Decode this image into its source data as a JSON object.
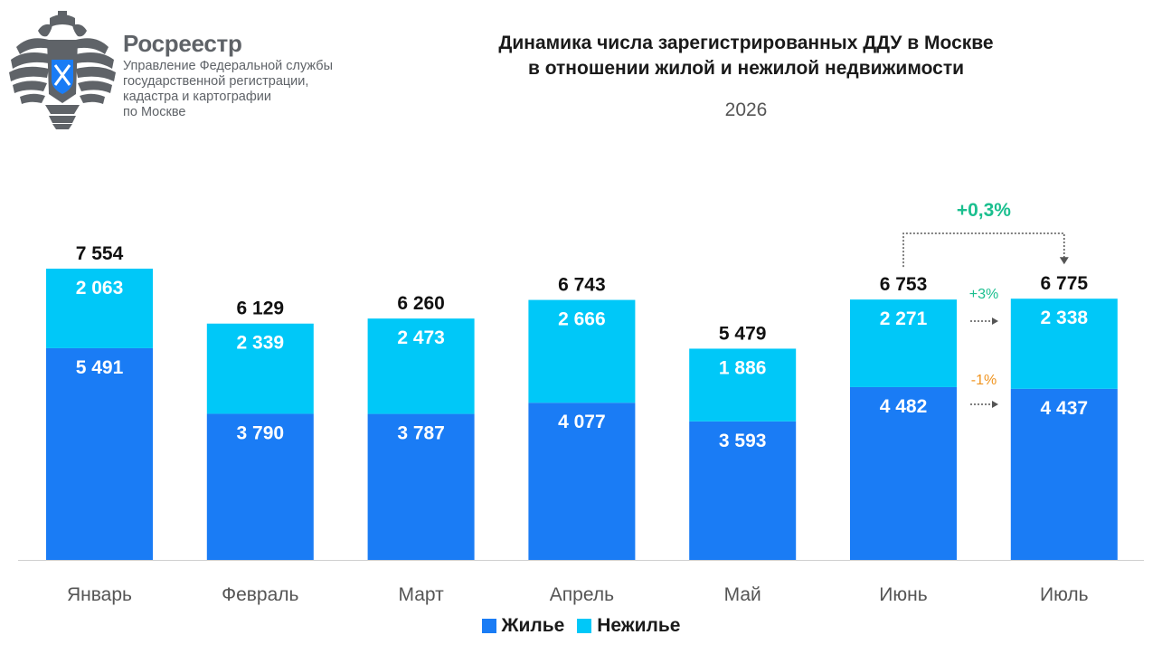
{
  "header": {
    "brand_name": "Росреестр",
    "brand_sub": [
      "Управление Федеральной службы",
      "государственной регистрации,",
      "кадастра и картографии",
      "по Москве"
    ],
    "brand_color": "#5f6368"
  },
  "chart_data": {
    "type": "bar",
    "stacked": true,
    "title": "Динамика числа зарегистрированных ДДУ в Москве\nв отношении жилой и нежилой недвижимости",
    "subtitle": "2026",
    "categories": [
      "Январь",
      "Февраль",
      "Март",
      "Апрель",
      "Май",
      "Июнь",
      "Июль"
    ],
    "series": [
      {
        "name": "Жилье",
        "values": [
          5491,
          3790,
          3787,
          4077,
          3593,
          4482,
          4437
        ],
        "labels": [
          "5 491",
          "3 790",
          "3 787",
          "4 077",
          "3 593",
          "4 482",
          "4 437"
        ],
        "color": "#1a7cf5"
      },
      {
        "name": "Нежилье",
        "values": [
          2063,
          2339,
          2473,
          2666,
          1886,
          2271,
          2338
        ],
        "labels": [
          "2 063",
          "2 339",
          "2 473",
          "2 666",
          "1 886",
          "2 271",
          "2 338"
        ],
        "color": "#00c8f8"
      }
    ],
    "totals": [
      "7 554",
      "6 129",
      "6 260",
      "6 743",
      "5 479",
      "6 753",
      "6 775"
    ],
    "legend_position": "bottom",
    "annotations": {
      "total_change": {
        "text": "+0,3%",
        "color": "#1bbf8f",
        "from": "Июнь",
        "to": "Июль"
      },
      "nonres_change": {
        "text": "+3%",
        "color": "#1bbf8f"
      },
      "res_change": {
        "text": "-1%",
        "color": "#f0941f"
      }
    }
  }
}
